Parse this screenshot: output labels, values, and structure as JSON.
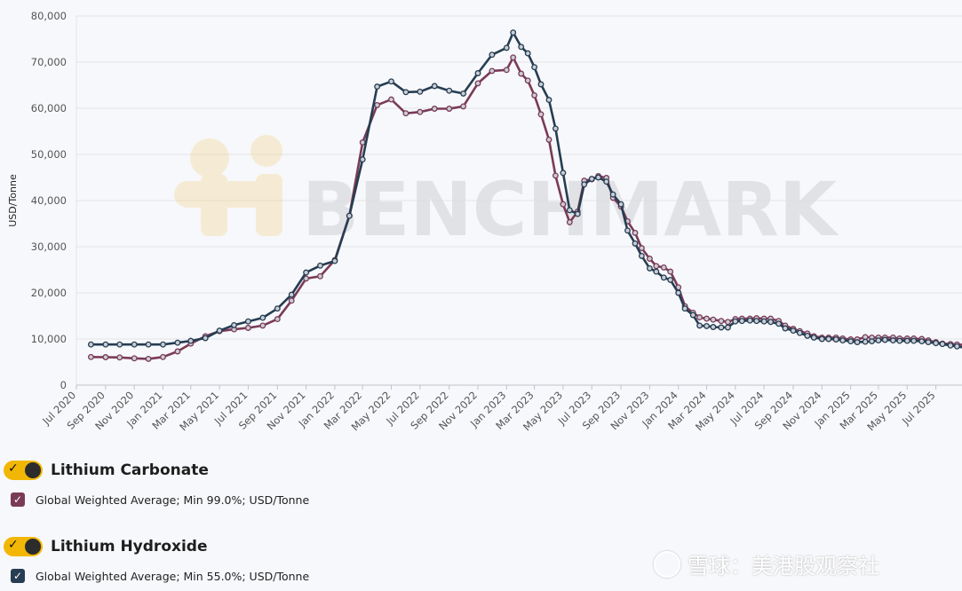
{
  "chart_data": {
    "type": "line",
    "ylabel": "USD/Tonne",
    "ylim": [
      0,
      80000
    ],
    "y_ticks": [
      "0",
      "10,000",
      "20,000",
      "30,000",
      "40,000",
      "50,000",
      "60,000",
      "70,000",
      "80,000"
    ],
    "y_tick_values": [
      0,
      10000,
      20000,
      30000,
      40000,
      50000,
      60000,
      70000,
      80000
    ],
    "x_range": [
      "2020-07-01",
      "2025-08-01"
    ],
    "x_ticks": [
      "Jul 2020",
      "Sep 2020",
      "Nov 2020",
      "Jan 2021",
      "Mar 2021",
      "May 2021",
      "Jul 2021",
      "Sep 2021",
      "Nov 2021",
      "Jan 2022",
      "Mar 2022",
      "May 2022",
      "Jul 2022",
      "Sep 2022",
      "Nov 2022",
      "Jan 2023",
      "Mar 2023",
      "May 2023",
      "Jul 2023",
      "Sep 2023",
      "Nov 2023",
      "Jan 2024",
      "Mar 2024",
      "May 2024",
      "Jul 2024",
      "Sep 2024",
      "Nov 2024",
      "Jan 2025",
      "Mar 2025",
      "May 2025",
      "Jul 2025"
    ],
    "x_tick_dates": [
      "2020-07-01",
      "2020-09-01",
      "2020-11-01",
      "2021-01-01",
      "2021-03-01",
      "2021-05-01",
      "2021-07-01",
      "2021-09-01",
      "2021-11-01",
      "2022-01-01",
      "2022-03-01",
      "2022-05-01",
      "2022-07-01",
      "2022-09-01",
      "2022-11-01",
      "2023-01-01",
      "2023-03-01",
      "2023-05-01",
      "2023-07-01",
      "2023-09-01",
      "2023-11-01",
      "2024-01-01",
      "2024-03-01",
      "2024-05-01",
      "2024-07-01",
      "2024-09-01",
      "2024-11-01",
      "2025-01-01",
      "2025-03-01",
      "2025-05-01",
      "2025-07-01"
    ],
    "grid": true,
    "watermark": "BENCHMARK",
    "series": [
      {
        "name": "Global Weighted Average; Min 99.0%; USD/Tonne",
        "group": "Lithium Carbonate",
        "color": "#7a3b57",
        "points": [
          [
            "2020-08-01",
            6100
          ],
          [
            "2020-09-01",
            6050
          ],
          [
            "2020-10-01",
            6000
          ],
          [
            "2020-11-01",
            5800
          ],
          [
            "2020-12-01",
            5700
          ],
          [
            "2021-01-01",
            6100
          ],
          [
            "2021-02-01",
            7300
          ],
          [
            "2021-03-01",
            9000
          ],
          [
            "2021-04-01",
            10600
          ],
          [
            "2021-05-01",
            11700
          ],
          [
            "2021-06-01",
            12100
          ],
          [
            "2021-07-01",
            12400
          ],
          [
            "2021-08-01",
            12900
          ],
          [
            "2021-09-01",
            14300
          ],
          [
            "2021-10-01",
            18300
          ],
          [
            "2021-11-01",
            23100
          ],
          [
            "2021-12-01",
            23600
          ],
          [
            "2022-01-01",
            27100
          ],
          [
            "2022-02-01",
            36700
          ],
          [
            "2022-03-01",
            52600
          ],
          [
            "2022-04-01",
            60700
          ],
          [
            "2022-05-01",
            61900
          ],
          [
            "2022-06-01",
            58900
          ],
          [
            "2022-07-01",
            59200
          ],
          [
            "2022-08-01",
            59900
          ],
          [
            "2022-09-01",
            59900
          ],
          [
            "2022-10-01",
            60400
          ],
          [
            "2022-11-01",
            65400
          ],
          [
            "2022-12-01",
            68100
          ],
          [
            "2023-01-01",
            68300
          ],
          [
            "2023-01-15",
            71000
          ],
          [
            "2023-02-01",
            67500
          ],
          [
            "2023-02-15",
            66000
          ],
          [
            "2023-03-01",
            62800
          ],
          [
            "2023-03-15",
            58700
          ],
          [
            "2023-04-01",
            53200
          ],
          [
            "2023-04-15",
            45400
          ],
          [
            "2023-05-01",
            39200
          ],
          [
            "2023-05-15",
            35300
          ],
          [
            "2023-06-01",
            37600
          ],
          [
            "2023-06-15",
            44300
          ],
          [
            "2023-07-01",
            44600
          ],
          [
            "2023-07-15",
            45300
          ],
          [
            "2023-08-01",
            44900
          ],
          [
            "2023-08-15",
            40600
          ],
          [
            "2023-09-01",
            38700
          ],
          [
            "2023-09-15",
            35500
          ],
          [
            "2023-10-01",
            33000
          ],
          [
            "2023-10-15",
            29700
          ],
          [
            "2023-11-01",
            27400
          ],
          [
            "2023-11-15",
            25800
          ],
          [
            "2023-12-01",
            25500
          ],
          [
            "2023-12-15",
            24600
          ],
          [
            "2024-01-01",
            21200
          ],
          [
            "2024-01-15",
            17100
          ],
          [
            "2024-02-01",
            15700
          ],
          [
            "2024-02-15",
            14700
          ],
          [
            "2024-03-01",
            14400
          ],
          [
            "2024-03-15",
            14200
          ],
          [
            "2024-04-01",
            13900
          ],
          [
            "2024-04-15",
            13700
          ],
          [
            "2024-05-01",
            14300
          ],
          [
            "2024-05-15",
            14400
          ],
          [
            "2024-06-01",
            14400
          ],
          [
            "2024-06-15",
            14500
          ],
          [
            "2024-07-01",
            14400
          ],
          [
            "2024-07-15",
            14400
          ],
          [
            "2024-08-01",
            13900
          ],
          [
            "2024-08-15",
            12900
          ],
          [
            "2024-09-01",
            12200
          ],
          [
            "2024-09-15",
            11700
          ],
          [
            "2024-10-01",
            11200
          ],
          [
            "2024-10-15",
            10600
          ],
          [
            "2024-11-01",
            10300
          ],
          [
            "2024-11-15",
            10300
          ],
          [
            "2024-12-01",
            10300
          ],
          [
            "2024-12-15",
            10100
          ],
          [
            "2025-01-01",
            9900
          ],
          [
            "2025-01-15",
            9900
          ],
          [
            "2025-02-01",
            10400
          ],
          [
            "2025-02-15",
            10300
          ],
          [
            "2025-03-01",
            10300
          ],
          [
            "2025-03-15",
            10300
          ],
          [
            "2025-04-01",
            10300
          ],
          [
            "2025-04-15",
            10100
          ],
          [
            "2025-05-01",
            10100
          ],
          [
            "2025-05-15",
            10100
          ],
          [
            "2025-06-01",
            10000
          ],
          [
            "2025-06-15",
            9700
          ],
          [
            "2025-07-01",
            9300
          ],
          [
            "2025-07-15",
            9000
          ],
          [
            "2025-08-01",
            8900
          ],
          [
            "2025-08-15",
            8800
          ],
          [
            "2025-09-01",
            8700
          ]
        ]
      },
      {
        "name": "Global Weighted Average; Min 55.0%; USD/Tonne",
        "group": "Lithium Hydroxide",
        "color": "#263d52",
        "points": [
          [
            "2020-08-01",
            8800
          ],
          [
            "2020-09-01",
            8800
          ],
          [
            "2020-10-01",
            8800
          ],
          [
            "2020-11-01",
            8800
          ],
          [
            "2020-12-01",
            8800
          ],
          [
            "2021-01-01",
            8800
          ],
          [
            "2021-02-01",
            9200
          ],
          [
            "2021-03-01",
            9600
          ],
          [
            "2021-04-01",
            10200
          ],
          [
            "2021-05-01",
            11800
          ],
          [
            "2021-06-01",
            13000
          ],
          [
            "2021-07-01",
            13800
          ],
          [
            "2021-08-01",
            14600
          ],
          [
            "2021-09-01",
            16600
          ],
          [
            "2021-10-01",
            19600
          ],
          [
            "2021-11-01",
            24400
          ],
          [
            "2021-12-01",
            25900
          ],
          [
            "2022-01-01",
            26900
          ],
          [
            "2022-02-01",
            36700
          ],
          [
            "2022-03-01",
            48900
          ],
          [
            "2022-04-01",
            64700
          ],
          [
            "2022-05-01",
            65800
          ],
          [
            "2022-06-01",
            63500
          ],
          [
            "2022-07-01",
            63600
          ],
          [
            "2022-08-01",
            64800
          ],
          [
            "2022-09-01",
            63800
          ],
          [
            "2022-10-01",
            63200
          ],
          [
            "2022-11-01",
            67600
          ],
          [
            "2022-12-01",
            71600
          ],
          [
            "2023-01-01",
            73100
          ],
          [
            "2023-01-15",
            76400
          ],
          [
            "2023-02-01",
            73300
          ],
          [
            "2023-02-15",
            71900
          ],
          [
            "2023-03-01",
            68900
          ],
          [
            "2023-03-15",
            65200
          ],
          [
            "2023-04-01",
            61800
          ],
          [
            "2023-04-15",
            55600
          ],
          [
            "2023-05-01",
            46000
          ],
          [
            "2023-05-15",
            37900
          ],
          [
            "2023-06-01",
            37100
          ],
          [
            "2023-06-15",
            43500
          ],
          [
            "2023-07-01",
            44700
          ],
          [
            "2023-07-15",
            45000
          ],
          [
            "2023-08-01",
            44100
          ],
          [
            "2023-08-15",
            41300
          ],
          [
            "2023-09-01",
            39200
          ],
          [
            "2023-09-15",
            33500
          ],
          [
            "2023-10-01",
            30700
          ],
          [
            "2023-10-15",
            28000
          ],
          [
            "2023-11-01",
            25300
          ],
          [
            "2023-11-15",
            24600
          ],
          [
            "2023-12-01",
            23300
          ],
          [
            "2023-12-15",
            22800
          ],
          [
            "2024-01-01",
            20000
          ],
          [
            "2024-01-15",
            16600
          ],
          [
            "2024-02-01",
            15200
          ],
          [
            "2024-02-15",
            12900
          ],
          [
            "2024-03-01",
            12800
          ],
          [
            "2024-03-15",
            12600
          ],
          [
            "2024-04-01",
            12500
          ],
          [
            "2024-04-15",
            12500
          ],
          [
            "2024-05-01",
            13800
          ],
          [
            "2024-05-15",
            13900
          ],
          [
            "2024-06-01",
            14000
          ],
          [
            "2024-06-15",
            13900
          ],
          [
            "2024-07-01",
            13800
          ],
          [
            "2024-07-15",
            13700
          ],
          [
            "2024-08-01",
            13300
          ],
          [
            "2024-08-15",
            12300
          ],
          [
            "2024-09-01",
            11800
          ],
          [
            "2024-09-15",
            11300
          ],
          [
            "2024-10-01",
            10700
          ],
          [
            "2024-10-15",
            10300
          ],
          [
            "2024-11-01",
            10000
          ],
          [
            "2024-11-15",
            10000
          ],
          [
            "2024-12-01",
            9900
          ],
          [
            "2024-12-15",
            9700
          ],
          [
            "2025-01-01",
            9500
          ],
          [
            "2025-01-15",
            9300
          ],
          [
            "2025-02-01",
            9400
          ],
          [
            "2025-02-15",
            9500
          ],
          [
            "2025-03-01",
            9700
          ],
          [
            "2025-03-15",
            9800
          ],
          [
            "2025-04-01",
            9700
          ],
          [
            "2025-04-15",
            9600
          ],
          [
            "2025-05-01",
            9600
          ],
          [
            "2025-05-15",
            9600
          ],
          [
            "2025-06-01",
            9500
          ],
          [
            "2025-06-15",
            9300
          ],
          [
            "2025-07-01",
            9100
          ],
          [
            "2025-07-15",
            8900
          ],
          [
            "2025-08-01",
            8600
          ],
          [
            "2025-08-15",
            8400
          ],
          [
            "2025-09-01",
            8100
          ]
        ]
      }
    ]
  },
  "legend": {
    "groups": [
      {
        "title": "Lithium Carbonate",
        "toggle_on": true,
        "toggle_color": "#f2b705",
        "series_label": "Global Weighted Average; Min 99.0%; USD/Tonne",
        "checkbox_color": "#7a3b57",
        "checked": true
      },
      {
        "title": "Lithium Hydroxide",
        "toggle_on": true,
        "toggle_color": "#f2b705",
        "series_label": "Global Weighted Average; Min 55.0%; USD/Tonne",
        "checkbox_color": "#263d52",
        "checked": true
      }
    ]
  },
  "footer_watermark": "雪球：美港股观察社",
  "icons": {
    "toggle_check": "✓",
    "checkbox_check": "✓"
  }
}
